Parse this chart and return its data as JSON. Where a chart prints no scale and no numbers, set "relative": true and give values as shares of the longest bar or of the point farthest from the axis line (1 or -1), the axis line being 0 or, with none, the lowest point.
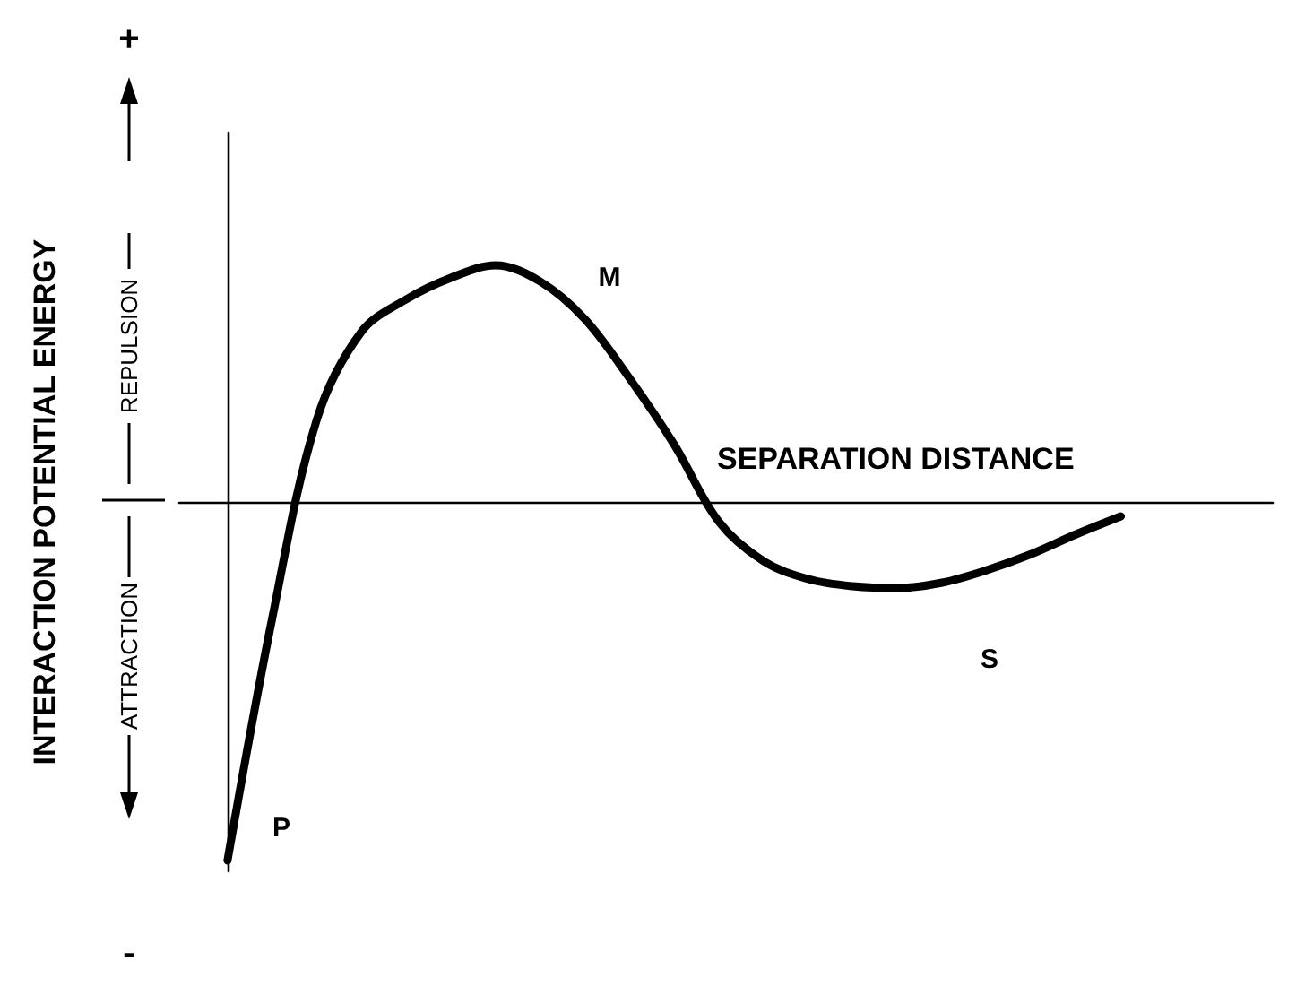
{
  "chart_data": {
    "type": "line",
    "relative": true,
    "xlabel": "SEPARATION DISTANCE",
    "ylabel": "INTERACTION POTENTIAL ENERGY",
    "categories": [
      null,
      null,
      null,
      null,
      null,
      null,
      null,
      null,
      null,
      null,
      null,
      null,
      null,
      null,
      null,
      null,
      null,
      null,
      null,
      null,
      null
    ],
    "series": [
      {
        "color": "#000000",
        "values": [
          -1,
          -0.325,
          0.23,
          0.475,
          0.565,
          0.625,
          0.66,
          0.615,
          0.51,
          0.345,
          0.16,
          -0.055,
          -0.165,
          -0.215,
          -0.235,
          -0.24,
          -0.225,
          -0.19,
          -0.145,
          -0.09,
          -0.04
        ]
      }
    ],
    "annotations": [
      "M",
      "P",
      "S",
      "+",
      "-",
      "REPULSION",
      "ATTRACTION"
    ],
    "marker": "none",
    "line_style": "solid",
    "grid": false
  }
}
